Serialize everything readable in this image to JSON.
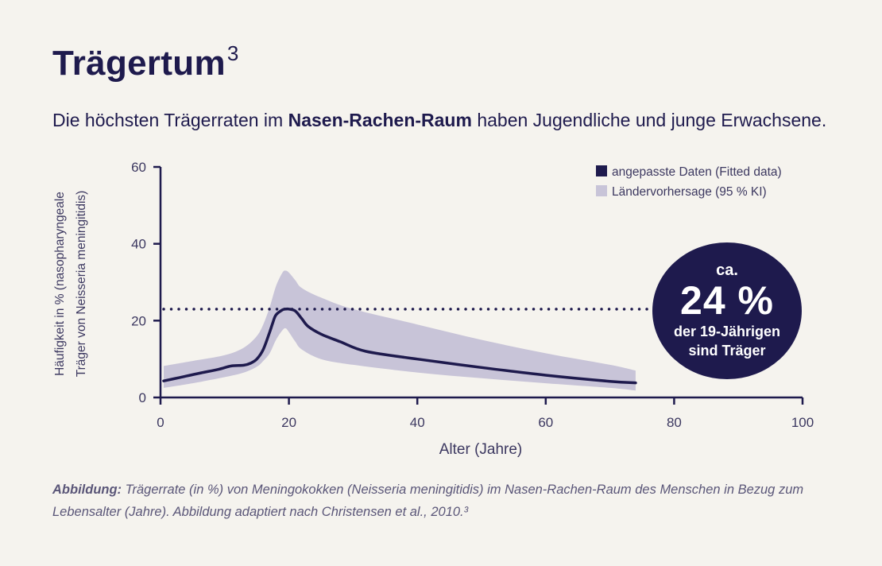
{
  "header": {
    "title": "Trägertum",
    "title_sup": "3",
    "subtitle_pre": "Die höchsten Trägerraten im ",
    "subtitle_bold": "Nasen-Rachen-Raum",
    "subtitle_post": " haben Jugendliche und junge Erwachsene."
  },
  "badge": {
    "pre": "ca.",
    "big": "24 %",
    "line1": "der 19-Jährigen",
    "line2": "sind Träger"
  },
  "caption": {
    "bold": "Abbildung:",
    "text": " Trägerrate (in %) von Meningokokken (Neisseria meningitidis) im Nasen-Rachen-Raum des Menschen in Bezug zum Lebensalter (Jahre). Abbildung adaptiert nach Christensen et al., 2010.³"
  },
  "colors": {
    "navy": "#1e1a4d",
    "band": "#c8c4d8",
    "background": "#f5f3ee"
  },
  "chart_data": {
    "type": "area",
    "xlabel": "Alter (Jahre)",
    "ylabel_line1": "Häufigkeit in % (nasopharyngeale",
    "ylabel_line2": "Träger von Neisseria meningitidis)",
    "xlim": [
      0,
      100
    ],
    "ylim": [
      0,
      60
    ],
    "xticks": [
      0,
      20,
      40,
      60,
      80,
      100
    ],
    "yticks": [
      0,
      20,
      40,
      60
    ],
    "legend_position": "top-right",
    "series": [
      {
        "name": "angepasste Daten (Fitted data)",
        "kind": "line",
        "x": [
          0.5,
          3,
          6,
          9,
          11,
          13,
          14,
          15,
          16,
          17,
          17.5,
          18,
          19,
          19.5,
          20,
          21,
          22,
          23,
          25,
          28,
          32,
          40,
          50,
          60,
          70,
          74
        ],
        "y": [
          4.3,
          5.2,
          6.3,
          7.3,
          8.2,
          8.4,
          8.9,
          10.0,
          12.5,
          17.0,
          19.5,
          21.5,
          22.8,
          23.0,
          23.0,
          22.5,
          20.5,
          18.5,
          16.5,
          14.5,
          12.0,
          10.0,
          7.8,
          5.8,
          4.2,
          3.8
        ]
      },
      {
        "name": "Ländervorhersage (95 % KI)",
        "kind": "band",
        "x": [
          0.5,
          5,
          10,
          13,
          15,
          16,
          17,
          18,
          19,
          19.5,
          20,
          21,
          22,
          25,
          30,
          40,
          50,
          60,
          70,
          74
        ],
        "upper": [
          8.2,
          9.5,
          11.0,
          13.0,
          16.0,
          19.0,
          23.5,
          29.0,
          32.5,
          33.0,
          32.5,
          30.5,
          28.5,
          26.0,
          23.0,
          19.0,
          15.0,
          11.5,
          8.5,
          7.0
        ],
        "lower": [
          2.5,
          3.7,
          5.3,
          6.5,
          8.0,
          9.5,
          11.5,
          15.0,
          17.5,
          18.0,
          17.0,
          14.5,
          12.5,
          10.0,
          8.5,
          6.5,
          5.0,
          3.7,
          2.5,
          1.8
        ]
      }
    ],
    "reference_line": {
      "y": 23.0,
      "style": "dotted"
    }
  }
}
